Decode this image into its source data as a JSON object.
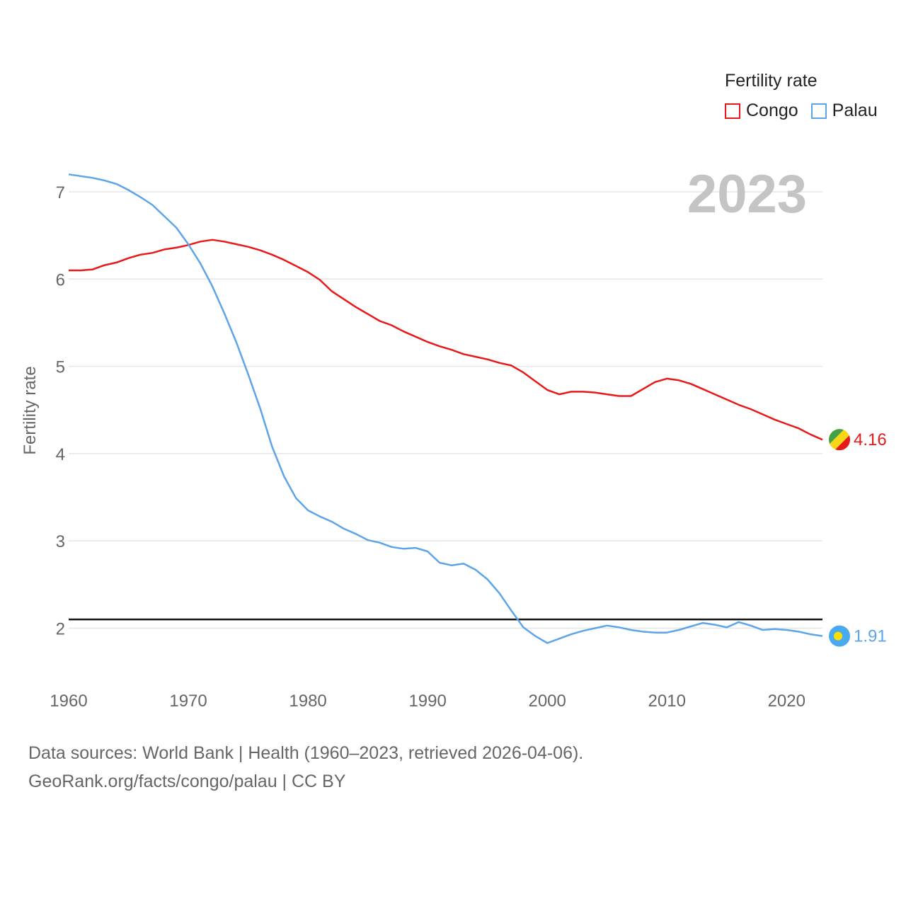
{
  "chart_data": {
    "type": "line",
    "year_label": "2023",
    "ylabel": "Fertility rate",
    "xlabel": "",
    "xlim": [
      1960,
      2023
    ],
    "ylim": [
      1.5,
      7.4
    ],
    "x_ticks": [
      1960,
      1970,
      1980,
      1990,
      2000,
      2010,
      2020
    ],
    "y_ticks": [
      2,
      3,
      4,
      5,
      6,
      7
    ],
    "reference_line": 2.1,
    "legend_title": "Fertility rate",
    "series": [
      {
        "name": "Congo",
        "color": "#e8191a",
        "end_label": "4.16",
        "x": [
          1960,
          1961,
          1962,
          1963,
          1964,
          1965,
          1966,
          1967,
          1968,
          1969,
          1970,
          1971,
          1972,
          1973,
          1974,
          1975,
          1976,
          1977,
          1978,
          1979,
          1980,
          1981,
          1982,
          1983,
          1984,
          1985,
          1986,
          1987,
          1988,
          1989,
          1990,
          1991,
          1992,
          1993,
          1994,
          1995,
          1996,
          1997,
          1998,
          1999,
          2000,
          2001,
          2002,
          2003,
          2004,
          2005,
          2006,
          2007,
          2008,
          2009,
          2010,
          2011,
          2012,
          2013,
          2014,
          2015,
          2016,
          2017,
          2018,
          2019,
          2020,
          2021,
          2022,
          2023
        ],
        "y": [
          6.1,
          6.1,
          6.11,
          6.16,
          6.19,
          6.24,
          6.28,
          6.3,
          6.34,
          6.36,
          6.39,
          6.43,
          6.45,
          6.43,
          6.4,
          6.37,
          6.33,
          6.28,
          6.22,
          6.15,
          6.08,
          5.99,
          5.86,
          5.77,
          5.68,
          5.6,
          5.52,
          5.47,
          5.4,
          5.34,
          5.28,
          5.23,
          5.19,
          5.14,
          5.11,
          5.08,
          5.04,
          5.01,
          4.93,
          4.83,
          4.73,
          4.68,
          4.71,
          4.71,
          4.7,
          4.68,
          4.66,
          4.66,
          4.74,
          4.82,
          4.86,
          4.84,
          4.8,
          4.74,
          4.68,
          4.62,
          4.56,
          4.51,
          4.45,
          4.39,
          4.34,
          4.29,
          4.22,
          4.16
        ]
      },
      {
        "name": "Palau",
        "color": "#5ea4e8",
        "end_label": "1.91",
        "x": [
          1960,
          1961,
          1962,
          1963,
          1964,
          1965,
          1966,
          1967,
          1968,
          1969,
          1970,
          1971,
          1972,
          1973,
          1974,
          1975,
          1976,
          1977,
          1978,
          1979,
          1980,
          1981,
          1982,
          1983,
          1984,
          1985,
          1986,
          1987,
          1988,
          1989,
          1990,
          1991,
          1992,
          1993,
          1994,
          1995,
          1996,
          1997,
          1998,
          1999,
          2000,
          2001,
          2002,
          2003,
          2004,
          2005,
          2006,
          2007,
          2008,
          2009,
          2010,
          2011,
          2012,
          2013,
          2014,
          2015,
          2016,
          2017,
          2018,
          2019,
          2020,
          2021,
          2022,
          2023
        ],
        "y": [
          7.2,
          7.18,
          7.16,
          7.13,
          7.09,
          7.02,
          6.94,
          6.85,
          6.72,
          6.59,
          6.4,
          6.18,
          5.92,
          5.61,
          5.28,
          4.91,
          4.52,
          4.08,
          3.74,
          3.49,
          3.35,
          3.28,
          3.22,
          3.14,
          3.08,
          3.01,
          2.98,
          2.93,
          2.91,
          2.92,
          2.88,
          2.75,
          2.72,
          2.74,
          2.67,
          2.56,
          2.4,
          2.2,
          2.01,
          1.91,
          1.83,
          1.88,
          1.93,
          1.97,
          2.0,
          2.03,
          2.01,
          1.98,
          1.96,
          1.95,
          1.95,
          1.98,
          2.02,
          2.06,
          2.04,
          2.01,
          2.07,
          2.03,
          1.98,
          1.99,
          1.98,
          1.96,
          1.93,
          1.91
        ]
      }
    ]
  },
  "source": {
    "line1": "Data sources: World Bank | Health (1960–2023, retrieved 2026-04-06).",
    "line2": "GeoRank.org/facts/congo/palau | CC BY"
  }
}
